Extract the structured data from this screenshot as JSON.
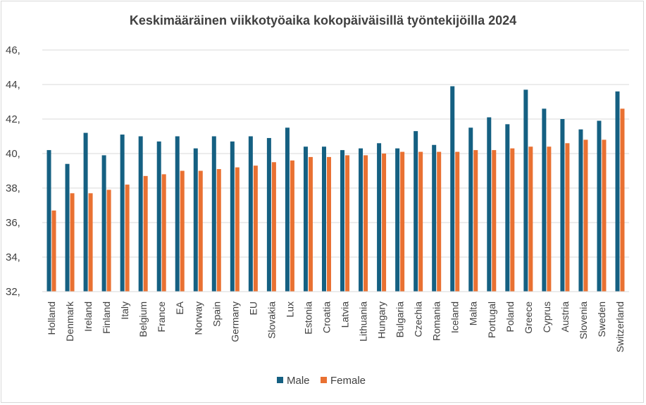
{
  "chart_data": {
    "type": "bar",
    "title": "Keskimääräinen viikkotyöaika kokopäiväisillä työntekijöilla 2024",
    "xlabel": "",
    "ylabel": "",
    "ylim": [
      32,
      46
    ],
    "yticks": [
      "32,",
      "34,",
      "36,",
      "38,",
      "40,",
      "42,",
      "44,",
      "46,"
    ],
    "grid": true,
    "legend_position": "bottom",
    "categories": [
      "Holland",
      "Denmark",
      "Ireland",
      "Finland",
      "Italy",
      "Belgium",
      "France",
      "EA",
      "Norway",
      "Spain",
      "Germany",
      "EU",
      "Slovakia",
      "Lux",
      "Estonia",
      "Croatia",
      "Latvia",
      "Lithuania",
      "Hungary",
      "Bulgaria",
      "Czechia",
      "Romania",
      "Iceland",
      "Malta",
      "Portugal",
      "Poland",
      "Greece",
      "Cyprus",
      "Austria",
      "Slovenia",
      "Sweden",
      "Switzerland"
    ],
    "series": [
      {
        "name": "Male",
        "color": "#156082",
        "values": [
          40.2,
          39.4,
          41.2,
          39.9,
          41.1,
          41.0,
          40.7,
          41.0,
          40.3,
          41.0,
          40.7,
          41.0,
          40.9,
          41.5,
          40.4,
          40.4,
          40.2,
          40.3,
          40.6,
          40.3,
          41.3,
          40.5,
          43.9,
          41.5,
          42.1,
          41.7,
          43.7,
          42.6,
          42.0,
          41.4,
          41.9,
          43.6
        ]
      },
      {
        "name": "Female",
        "color": "#E97132",
        "values": [
          36.7,
          37.7,
          37.7,
          37.9,
          38.2,
          38.7,
          38.8,
          39.0,
          39.0,
          39.1,
          39.2,
          39.3,
          39.5,
          39.6,
          39.8,
          39.8,
          39.9,
          39.9,
          40.0,
          40.1,
          40.1,
          40.1,
          40.1,
          40.2,
          40.2,
          40.3,
          40.4,
          40.4,
          40.6,
          40.8,
          40.8,
          42.6
        ]
      }
    ]
  }
}
